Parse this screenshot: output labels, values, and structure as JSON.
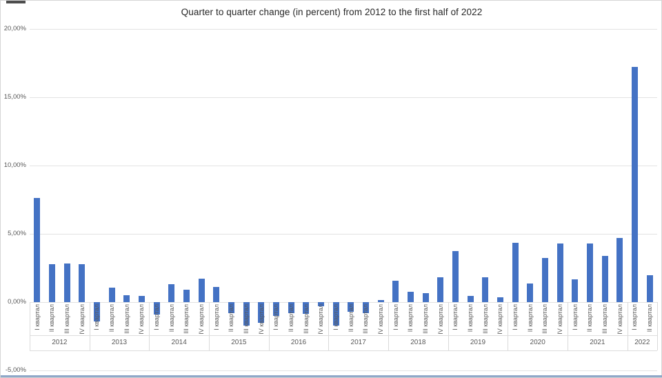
{
  "window": {
    "top_edge_artifact": "scrollbar-fragment",
    "bottom_border_color": "#8fa8c8"
  },
  "chart_data": {
    "type": "bar",
    "title": "Quarter to quarter change (in percent) from 2012 to the first half of 2022",
    "bar_color": "#4472c4",
    "grid": true,
    "legend": "none",
    "ylabel": "",
    "xlabel": "",
    "ylim": [
      -5,
      20
    ],
    "y_ticks": [
      {
        "label": "20,00%",
        "value": 20
      },
      {
        "label": "15,00%",
        "value": 15
      },
      {
        "label": "10,00%",
        "value": 10
      },
      {
        "label": "5,00%",
        "value": 5
      },
      {
        "label": "0,00%",
        "value": 0
      },
      {
        "label": "-5,00%",
        "value": -5
      }
    ],
    "quarter_labels": [
      "I квартал",
      "II квартал",
      "III квартал",
      "IV квартал"
    ],
    "groups": [
      {
        "year": "2012",
        "values": [
          7.65,
          2.8,
          2.85,
          2.8
        ]
      },
      {
        "year": "2013",
        "values": [
          -1.4,
          1.05,
          0.5,
          0.45
        ]
      },
      {
        "year": "2014",
        "values": [
          -0.9,
          1.3,
          0.9,
          1.7
        ]
      },
      {
        "year": "2015",
        "values": [
          1.1,
          -0.8,
          -1.7,
          -1.5
        ]
      },
      {
        "year": "2016",
        "values": [
          -1.0,
          -0.8,
          -0.85,
          -0.3
        ]
      },
      {
        "year": "2017",
        "values": [
          -1.7,
          -0.7,
          -0.8,
          0.15
        ]
      },
      {
        "year": "2018",
        "values": [
          1.55,
          0.75,
          0.65,
          1.8
        ]
      },
      {
        "year": "2019",
        "values": [
          3.75,
          0.45,
          1.8,
          0.35
        ]
      },
      {
        "year": "2020",
        "values": [
          4.35,
          1.35,
          3.25,
          4.3
        ]
      },
      {
        "year": "2021",
        "values": [
          1.65,
          4.3,
          3.4,
          4.7
        ]
      },
      {
        "year": "2022",
        "values": [
          17.2,
          1.95
        ]
      }
    ]
  }
}
